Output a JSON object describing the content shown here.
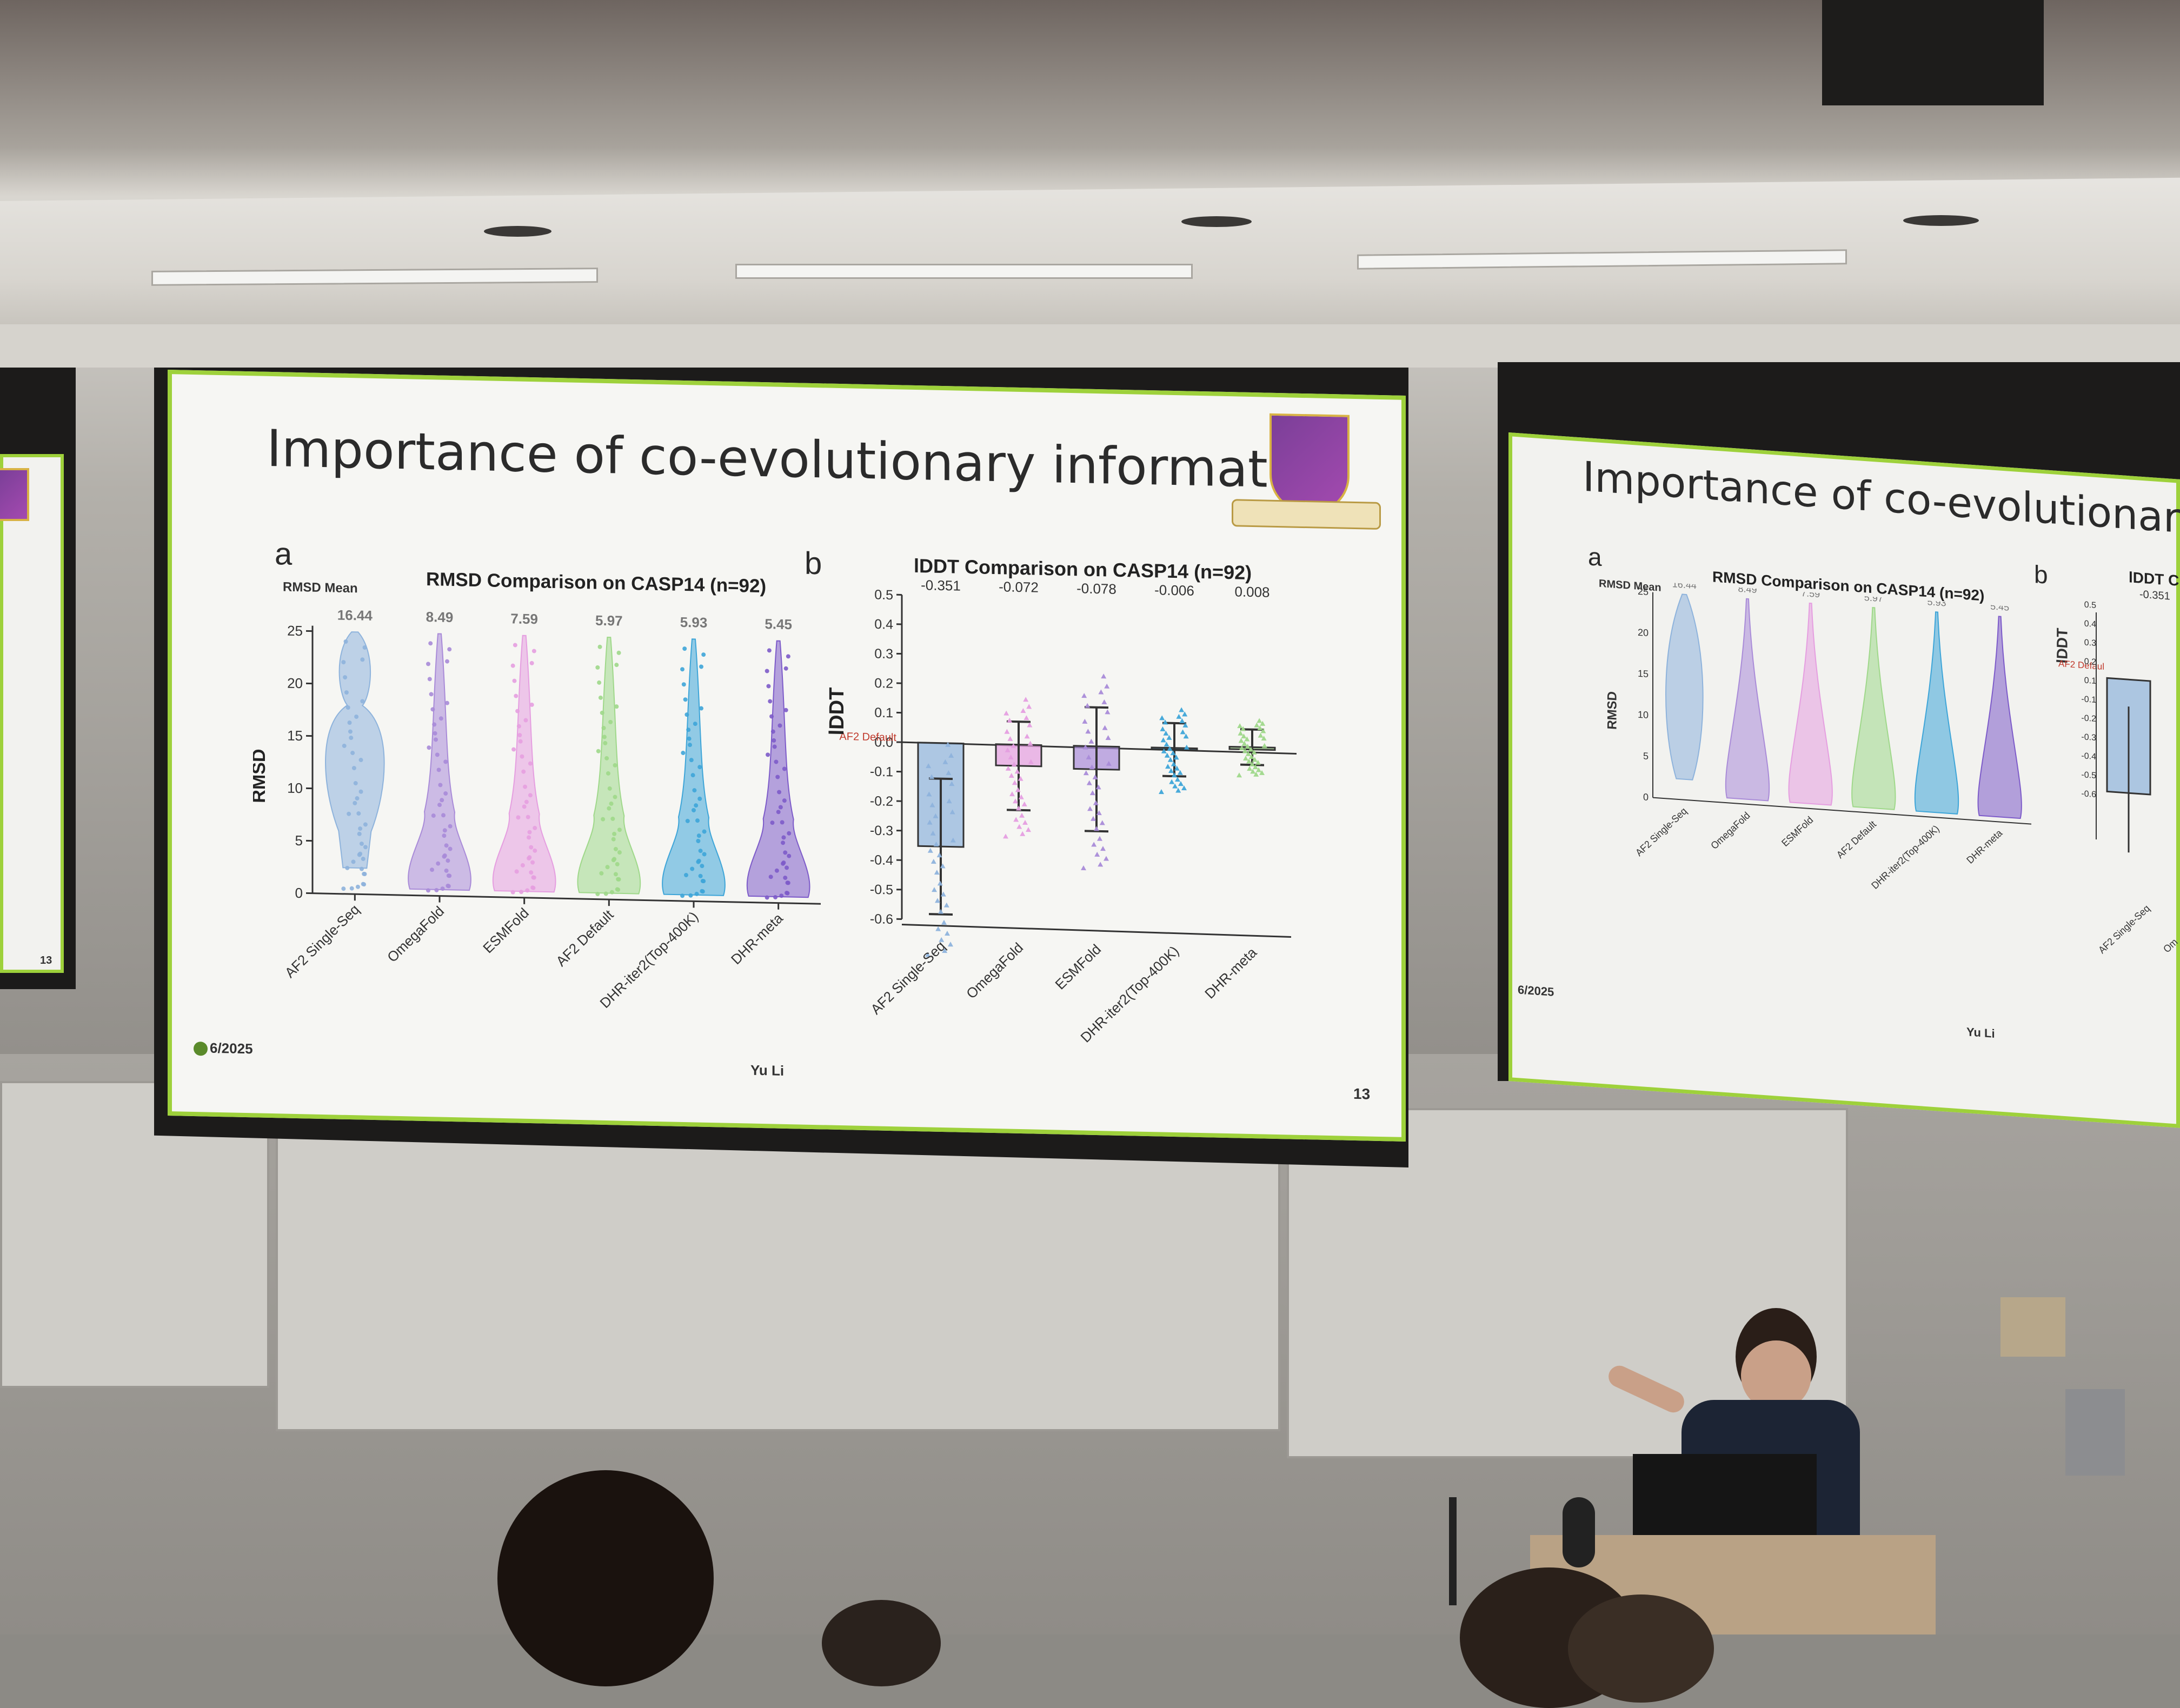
{
  "main_slide": {
    "title": "Importance of co-evolutionary information",
    "date": "6/2025",
    "presenter": "Yu Li",
    "page": "13"
  },
  "chart_data": [
    {
      "type": "violin",
      "panel": "a",
      "title": "RMSD Comparison on CASP14 (n=92)",
      "ylabel": "RMSD",
      "mean_label": "RMSD Mean",
      "ylim": [
        0,
        25
      ],
      "yticks": [
        0,
        5,
        10,
        15,
        20,
        25
      ],
      "categories": [
        "AF2 Single-Seq",
        "OmegaFold",
        "ESMFold",
        "AF2 Default",
        "DHR-iter2(Top-400K)",
        "DHR-meta"
      ],
      "means": [
        16.44,
        8.49,
        7.59,
        5.97,
        5.93,
        5.45
      ],
      "mean_labels": [
        "16.44",
        "8.49",
        "7.59",
        "5.97",
        "5.93",
        "5.45"
      ],
      "colors": [
        "#8eb3dc",
        "#a98bd8",
        "#e59ee0",
        "#9fd88a",
        "#3ea5d8",
        "#7d5bc9"
      ]
    },
    {
      "type": "bar",
      "panel": "b",
      "title": "lDDT Comparison on CASP14 (n=92)",
      "ylabel": "lDDT",
      "baseline_label": "AF2 Default",
      "ylim": [
        -0.6,
        0.5
      ],
      "yticks": [
        0.5,
        0.4,
        0.3,
        0.2,
        0.1,
        0.0,
        -0.1,
        -0.2,
        -0.3,
        -0.4,
        -0.5,
        -0.6
      ],
      "ytick_labels": [
        "0.5",
        "0.4",
        "0.3",
        "0.2",
        "0.1",
        "0.0",
        "-0.1",
        "-0.2",
        "-0.3",
        "-0.4",
        "-0.5",
        "-0.6"
      ],
      "categories": [
        "AF2 Single-Seq",
        "OmegaFold",
        "ESMFold",
        "DHR-iter2(Top-400K)",
        "DHR-meta"
      ],
      "values": [
        -0.351,
        -0.072,
        -0.078,
        -0.006,
        0.008
      ],
      "value_labels": [
        "-0.351",
        "-0.072",
        "-0.078",
        "-0.006",
        "0.008"
      ],
      "errors": [
        0.23,
        0.15,
        0.21,
        0.09,
        0.06
      ],
      "colors": [
        "#8eb3dc",
        "#e59ee0",
        "#a98bd8",
        "#3ea5d8",
        "#9fd88a"
      ]
    }
  ],
  "right_slide": {
    "title": "Importance of co-evolutionary infor",
    "panel_a": "a",
    "panel_b": "b",
    "chart_a_title": "RMSD Comparison on CASP14 (n=92)",
    "chart_b_title": "lDDT C",
    "mean_label": "RMSD Mean",
    "ylabel_a": "RMSD",
    "ylabel_b": "lDDT",
    "baseline_label": "AF2 Defaul",
    "first_value": "-0.351",
    "date": "6/2025",
    "presenter": "Yu Li",
    "yticks_b": [
      "0.5",
      "0.4",
      "0.3",
      "0.2",
      "0.1",
      "-0.1",
      "-0.2",
      "-0.3",
      "-0.4",
      "-0.5",
      "-0.6"
    ],
    "xlabels_b": [
      "AF2 Single-Seq",
      "Om"
    ]
  },
  "left_slide": {
    "page": "13"
  },
  "colors": {
    "slide_border": "#9ed13b",
    "crest_purple": "#7b3f98",
    "crest_gold": "#d8b244"
  }
}
